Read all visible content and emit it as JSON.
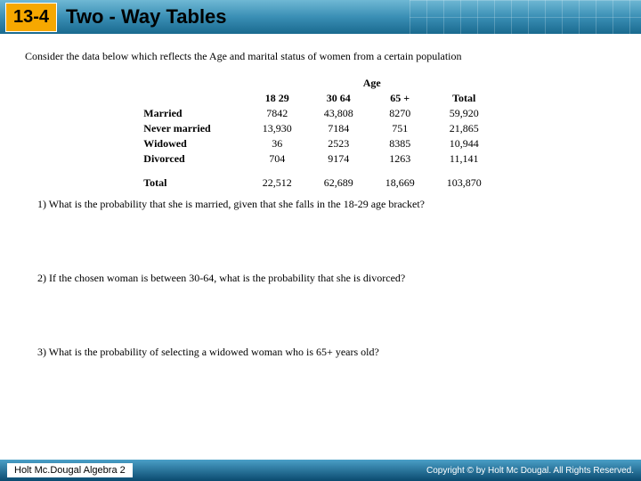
{
  "header": {
    "lesson_number": "13-4",
    "lesson_title": "Two - Way Tables",
    "badge_bg": "#f6a800",
    "header_gradient_top": "#6fb8d4",
    "header_gradient_bottom": "#1a6a8f"
  },
  "prompt": "Consider the data below which reflects the Age and marital status of women from a certain population",
  "table": {
    "super_header": "Age",
    "columns": [
      "18 29",
      "30 64",
      "65 +",
      "Total"
    ],
    "rows": [
      {
        "label": "Married",
        "cells": [
          "7842",
          "43,808",
          "8270",
          "59,920"
        ]
      },
      {
        "label": "Never married",
        "cells": [
          "13,930",
          "7184",
          "751",
          "21,865"
        ]
      },
      {
        "label": "Widowed",
        "cells": [
          "36",
          "2523",
          "8385",
          "10,944"
        ]
      },
      {
        "label": "Divorced",
        "cells": [
          "704",
          "9174",
          "1263",
          "11,141"
        ]
      }
    ],
    "total_row": {
      "label": "Total",
      "cells": [
        "22,512",
        "62,689",
        "18,669",
        "103,870"
      ]
    },
    "font_family": "Times New Roman",
    "font_size_pt": 9
  },
  "questions": [
    "1)  What is the probability that she is married, given that she falls in the 18-29 age bracket?",
    "2)  If the chosen woman is between 30-64, what is the probability that she is divorced?",
    "3)  What is the probability of selecting a widowed woman who is 65+ years old?"
  ],
  "footer": {
    "left": "Holt Mc.Dougal Algebra 2",
    "right": "Copyright © by Holt Mc Dougal. All Rights Reserved."
  },
  "colors": {
    "page_bg": "#ffffff",
    "text": "#000000",
    "footer_gradient_top": "#4a9fc7",
    "footer_gradient_bottom": "#0a4a6f"
  }
}
